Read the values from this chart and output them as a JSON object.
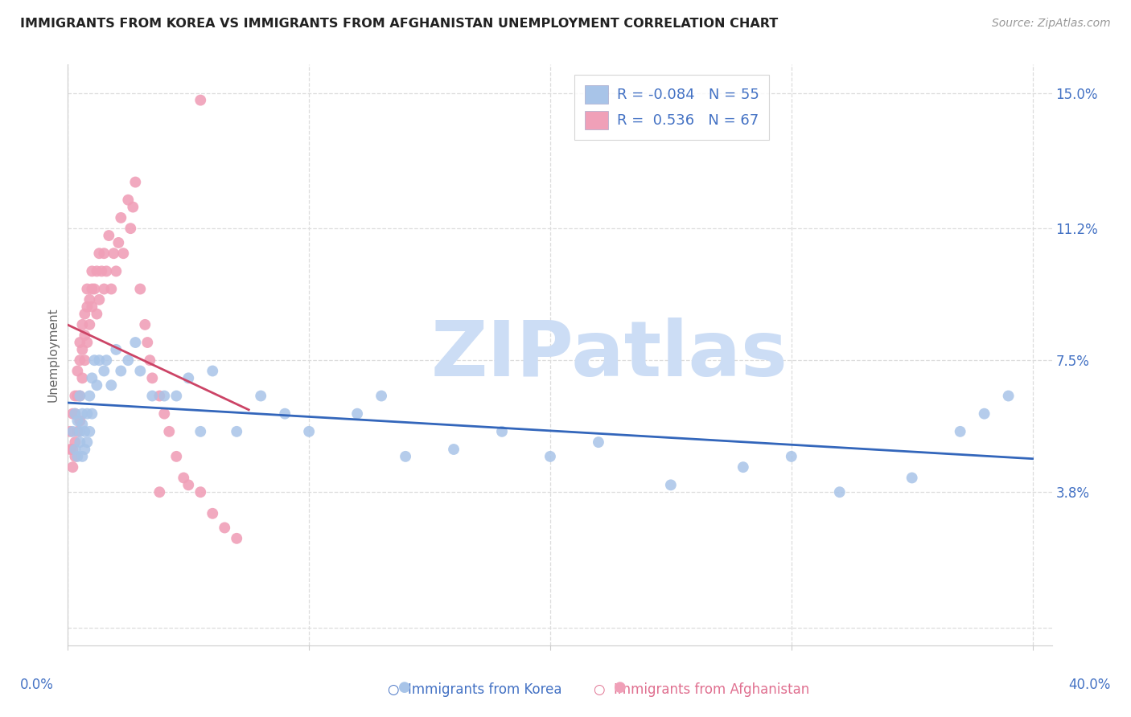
{
  "title": "IMMIGRANTS FROM KOREA VS IMMIGRANTS FROM AFGHANISTAN UNEMPLOYMENT CORRELATION CHART",
  "source": "Source: ZipAtlas.com",
  "ylabel": "Unemployment",
  "ytick_values": [
    0.0,
    0.038,
    0.075,
    0.112,
    0.15
  ],
  "ytick_labels": [
    "",
    "3.8%",
    "7.5%",
    "11.2%",
    "15.0%"
  ],
  "xtick_values": [
    0.0,
    0.1,
    0.2,
    0.3,
    0.4
  ],
  "xtick_labels": [
    "",
    "",
    "",
    "",
    ""
  ],
  "legend_korea": "Immigrants from Korea",
  "legend_afghanistan": "Immigrants from Afghanistan",
  "korea_R": "-0.084",
  "korea_N": "55",
  "afghanistan_R": "0.536",
  "afghanistan_N": "67",
  "color_korea_fill": "#a8c4e8",
  "color_korea_edge": "#6699cc",
  "color_afghanistan_fill": "#f0a0b8",
  "color_afghanistan_edge": "#e07090",
  "color_korea_line": "#3366bb",
  "color_afghanistan_line": "#cc4466",
  "watermark_color": "#ccddf5",
  "axis_color": "#4472c4",
  "grid_color": "#dddddd",
  "title_color": "#222222",
  "source_color": "#999999",
  "korea_x": [
    0.002,
    0.003,
    0.003,
    0.004,
    0.004,
    0.005,
    0.005,
    0.005,
    0.006,
    0.006,
    0.006,
    0.007,
    0.007,
    0.008,
    0.008,
    0.009,
    0.009,
    0.01,
    0.01,
    0.011,
    0.012,
    0.013,
    0.015,
    0.016,
    0.018,
    0.02,
    0.022,
    0.025,
    0.028,
    0.03,
    0.035,
    0.04,
    0.045,
    0.05,
    0.055,
    0.06,
    0.07,
    0.08,
    0.09,
    0.1,
    0.12,
    0.13,
    0.14,
    0.16,
    0.18,
    0.2,
    0.22,
    0.25,
    0.28,
    0.3,
    0.32,
    0.35,
    0.37,
    0.38,
    0.39
  ],
  "korea_y": [
    0.055,
    0.06,
    0.05,
    0.048,
    0.058,
    0.052,
    0.065,
    0.055,
    0.048,
    0.06,
    0.057,
    0.055,
    0.05,
    0.06,
    0.052,
    0.065,
    0.055,
    0.07,
    0.06,
    0.075,
    0.068,
    0.075,
    0.072,
    0.075,
    0.068,
    0.078,
    0.072,
    0.075,
    0.08,
    0.072,
    0.065,
    0.065,
    0.065,
    0.07,
    0.055,
    0.072,
    0.055,
    0.065,
    0.06,
    0.055,
    0.06,
    0.065,
    0.048,
    0.05,
    0.055,
    0.048,
    0.052,
    0.04,
    0.045,
    0.048,
    0.038,
    0.042,
    0.055,
    0.06,
    0.065
  ],
  "afghanistan_x": [
    0.001,
    0.001,
    0.002,
    0.002,
    0.002,
    0.003,
    0.003,
    0.003,
    0.003,
    0.004,
    0.004,
    0.004,
    0.005,
    0.005,
    0.005,
    0.005,
    0.006,
    0.006,
    0.006,
    0.007,
    0.007,
    0.007,
    0.008,
    0.008,
    0.008,
    0.009,
    0.009,
    0.01,
    0.01,
    0.01,
    0.011,
    0.012,
    0.012,
    0.013,
    0.013,
    0.014,
    0.015,
    0.015,
    0.016,
    0.017,
    0.018,
    0.019,
    0.02,
    0.021,
    0.022,
    0.023,
    0.025,
    0.026,
    0.027,
    0.028,
    0.03,
    0.032,
    0.033,
    0.034,
    0.035,
    0.038,
    0.04,
    0.042,
    0.045,
    0.048,
    0.05,
    0.055,
    0.06,
    0.065,
    0.07,
    0.055,
    0.038
  ],
  "afghanistan_y": [
    0.05,
    0.055,
    0.05,
    0.06,
    0.045,
    0.052,
    0.065,
    0.06,
    0.048,
    0.055,
    0.065,
    0.072,
    0.058,
    0.065,
    0.075,
    0.08,
    0.07,
    0.078,
    0.085,
    0.075,
    0.082,
    0.088,
    0.08,
    0.09,
    0.095,
    0.085,
    0.092,
    0.09,
    0.095,
    0.1,
    0.095,
    0.088,
    0.1,
    0.092,
    0.105,
    0.1,
    0.095,
    0.105,
    0.1,
    0.11,
    0.095,
    0.105,
    0.1,
    0.108,
    0.115,
    0.105,
    0.12,
    0.112,
    0.118,
    0.125,
    0.095,
    0.085,
    0.08,
    0.075,
    0.07,
    0.065,
    0.06,
    0.055,
    0.048,
    0.042,
    0.04,
    0.038,
    0.032,
    0.028,
    0.025,
    0.148,
    0.038
  ]
}
